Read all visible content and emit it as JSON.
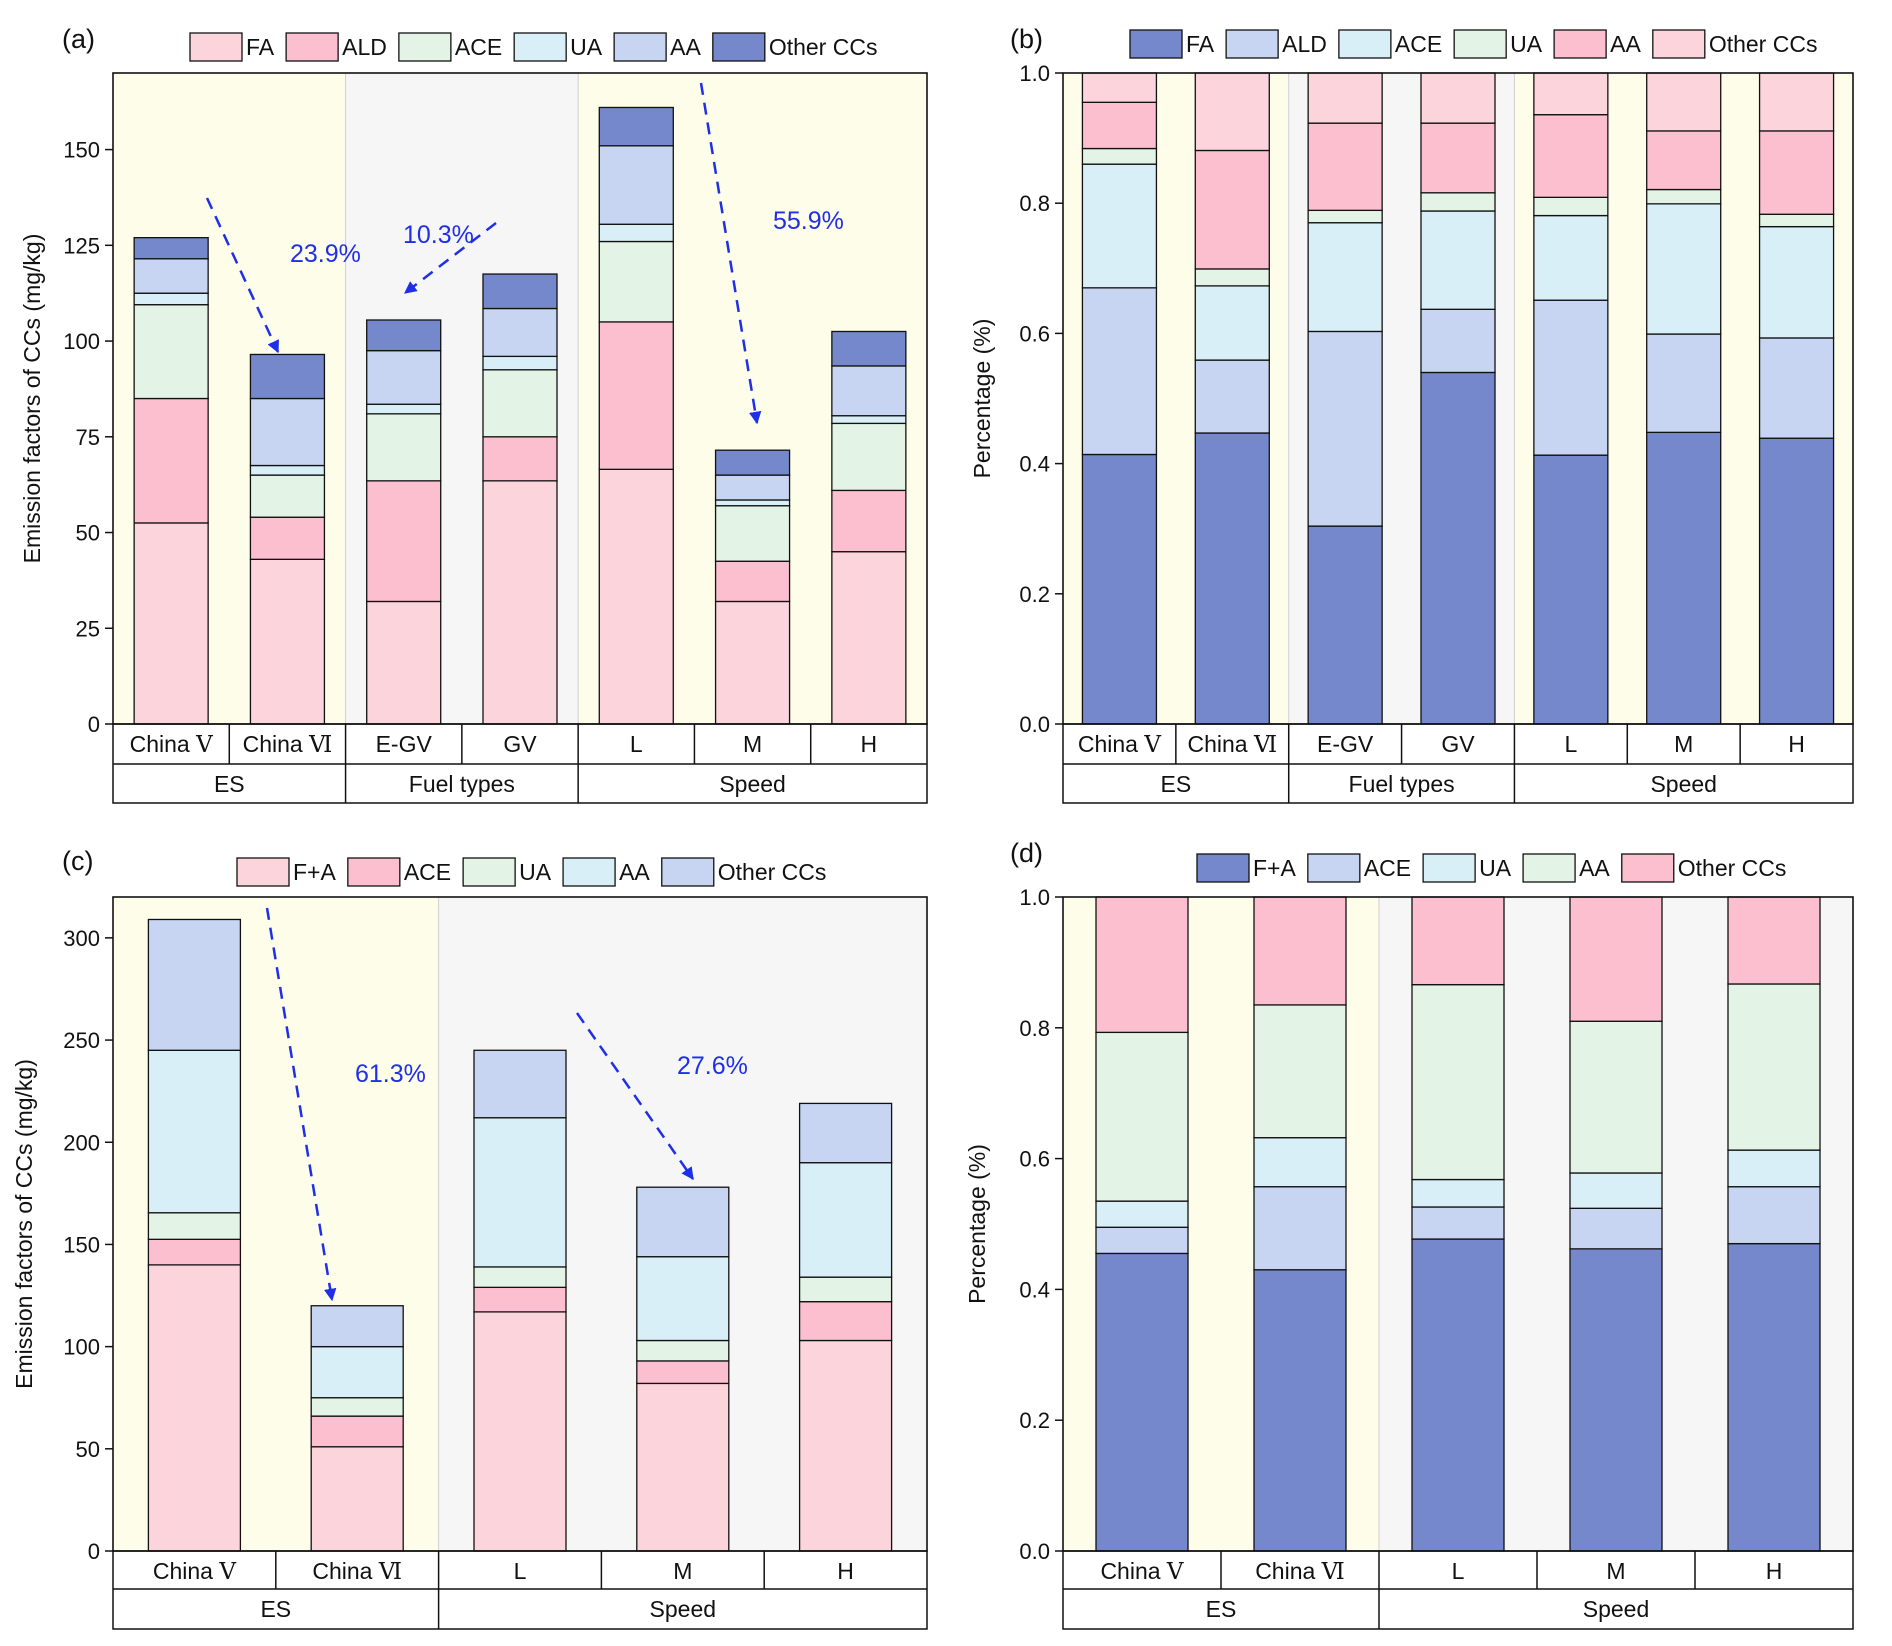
{
  "colors": {
    "pink_light": "#fcd4dc",
    "pink": "#fbbfcf",
    "green": "#e3f3e6",
    "cyan": "#d9eff7",
    "lavender": "#c7d5f2",
    "blue": "#7588cc",
    "band_yellow": "#fefdea",
    "band_gray": "#f6f6f6",
    "arrow": "#1f2fe8"
  },
  "chart_data": [
    {
      "panel": "(a)",
      "type": "bar",
      "stacked": true,
      "ylabel": "Emission factors of CCs (mg/kg)",
      "ylim": [
        0,
        170
      ],
      "yticks": [
        "0",
        "25",
        "50",
        "75",
        "100",
        "125",
        "150"
      ],
      "categories": [
        "China Ⅴ",
        "China Ⅵ",
        "E-GV",
        "GV",
        "L",
        "M",
        "H"
      ],
      "groups": [
        {
          "label": "ES",
          "span": [
            0,
            1
          ],
          "band": "yellow"
        },
        {
          "label": "Fuel types",
          "span": [
            2,
            3
          ],
          "band": "gray"
        },
        {
          "label": "Speed",
          "span": [
            4,
            6
          ],
          "band": "yellow"
        }
      ],
      "series": [
        {
          "name": "FA",
          "color": "pink_light",
          "values": [
            52.5,
            43,
            32,
            63.5,
            66.5,
            32,
            45
          ]
        },
        {
          "name": "ALD",
          "color": "pink",
          "values": [
            32.5,
            11,
            31.5,
            11.5,
            38.5,
            10.5,
            16
          ]
        },
        {
          "name": "ACE",
          "color": "green",
          "values": [
            24.5,
            11,
            17.5,
            17.5,
            21,
            14.5,
            17.5
          ]
        },
        {
          "name": "UA",
          "color": "cyan",
          "values": [
            3,
            2.5,
            2.5,
            3.5,
            4.5,
            1.5,
            2
          ]
        },
        {
          "name": "AA",
          "color": "lavender",
          "values": [
            9,
            17.5,
            14,
            12.5,
            20.5,
            6.5,
            13
          ]
        },
        {
          "name": "Other CCs",
          "color": "blue",
          "values": [
            5.5,
            11.5,
            8,
            9,
            10,
            6.5,
            9
          ]
        }
      ],
      "annotations": [
        {
          "text": "23.9%",
          "from_index": 0,
          "to_index": 1
        },
        {
          "text": "10.3%",
          "from_index": 3,
          "to_index": 2
        },
        {
          "text": "55.9%",
          "from_index": 4,
          "to_index": 5
        }
      ]
    },
    {
      "panel": "(b)",
      "type": "bar",
      "stacked": true,
      "ylabel": "Percentage (%)",
      "ylim": [
        0,
        1
      ],
      "yticks": [
        "0.0",
        "0.2",
        "0.4",
        "0.6",
        "0.8",
        "1.0"
      ],
      "categories": [
        "China Ⅴ",
        "China Ⅵ",
        "E-GV",
        "GV",
        "L",
        "M",
        "H"
      ],
      "groups": [
        {
          "label": "ES",
          "span": [
            0,
            1
          ],
          "band": "yellow"
        },
        {
          "label": "Fuel types",
          "span": [
            2,
            3
          ],
          "band": "gray"
        },
        {
          "label": "Speed",
          "span": [
            4,
            6
          ],
          "band": "yellow"
        }
      ],
      "series": [
        {
          "name": "FA",
          "color": "blue",
          "values": [
            0.414,
            0.447,
            0.304,
            0.54,
            0.413,
            0.448,
            0.439
          ]
        },
        {
          "name": "ALD",
          "color": "lavender",
          "values": [
            0.256,
            0.112,
            0.299,
            0.097,
            0.238,
            0.151,
            0.154
          ]
        },
        {
          "name": "ACE",
          "color": "cyan",
          "values": [
            0.19,
            0.114,
            0.167,
            0.151,
            0.13,
            0.2,
            0.171
          ]
        },
        {
          "name": "UA",
          "color": "green",
          "values": [
            0.024,
            0.026,
            0.019,
            0.028,
            0.028,
            0.022,
            0.019
          ]
        },
        {
          "name": "AA",
          "color": "pink",
          "values": [
            0.071,
            0.182,
            0.134,
            0.107,
            0.127,
            0.09,
            0.128
          ]
        },
        {
          "name": "Other CCs",
          "color": "pink_light",
          "values": [
            0.045,
            0.119,
            0.077,
            0.077,
            0.064,
            0.089,
            0.089
          ]
        }
      ]
    },
    {
      "panel": "(c)",
      "type": "bar",
      "stacked": true,
      "ylabel": "Emission factors of CCs (mg/kg)",
      "ylim": [
        0,
        320
      ],
      "yticks": [
        "0",
        "50",
        "100",
        "150",
        "200",
        "250",
        "300"
      ],
      "categories": [
        "China Ⅴ",
        "China Ⅵ",
        "L",
        "M",
        "H"
      ],
      "groups": [
        {
          "label": "ES",
          "span": [
            0,
            1
          ],
          "band": "yellow"
        },
        {
          "label": "Speed",
          "span": [
            2,
            4
          ],
          "band": "gray"
        }
      ],
      "series": [
        {
          "name": "F+A",
          "color": "pink_light",
          "values": [
            140,
            51,
            117,
            82,
            103
          ]
        },
        {
          "name": "ACE",
          "color": "pink",
          "values": [
            12.5,
            15,
            12,
            11,
            19
          ]
        },
        {
          "name": "UA",
          "color": "green",
          "values": [
            13,
            9,
            10,
            10,
            12
          ]
        },
        {
          "name": "AA",
          "color": "cyan",
          "values": [
            79.5,
            25,
            73,
            41,
            56
          ]
        },
        {
          "name": "Other CCs",
          "color": "lavender",
          "values": [
            64,
            20,
            33,
            34,
            29
          ]
        }
      ],
      "annotations": [
        {
          "text": "61.3%",
          "from_index": 0,
          "to_index": 1
        },
        {
          "text": "27.6%",
          "from_index": 2,
          "to_index": 3
        }
      ]
    },
    {
      "panel": "(d)",
      "type": "bar",
      "stacked": true,
      "ylabel": "Percentage (%)",
      "ylim": [
        0,
        1
      ],
      "yticks": [
        "0.0",
        "0.2",
        "0.4",
        "0.6",
        "0.8",
        "1.0"
      ],
      "categories": [
        "China Ⅴ",
        "China Ⅵ",
        "L",
        "M",
        "H"
      ],
      "groups": [
        {
          "label": "ES",
          "span": [
            0,
            1
          ],
          "band": "yellow"
        },
        {
          "label": "Speed",
          "span": [
            2,
            4
          ],
          "band": "gray"
        }
      ],
      "series": [
        {
          "name": "F+A",
          "color": "blue",
          "values": [
            0.455,
            0.43,
            0.477,
            0.462,
            0.47
          ]
        },
        {
          "name": "ACE",
          "color": "lavender",
          "values": [
            0.04,
            0.127,
            0.049,
            0.062,
            0.087
          ]
        },
        {
          "name": "UA",
          "color": "cyan",
          "values": [
            0.04,
            0.075,
            0.042,
            0.054,
            0.056
          ]
        },
        {
          "name": "AA",
          "color": "green",
          "values": [
            0.258,
            0.203,
            0.298,
            0.232,
            0.254
          ]
        },
        {
          "name": "Other CCs",
          "color": "pink",
          "values": [
            0.207,
            0.165,
            0.134,
            0.19,
            0.133
          ]
        }
      ]
    }
  ]
}
